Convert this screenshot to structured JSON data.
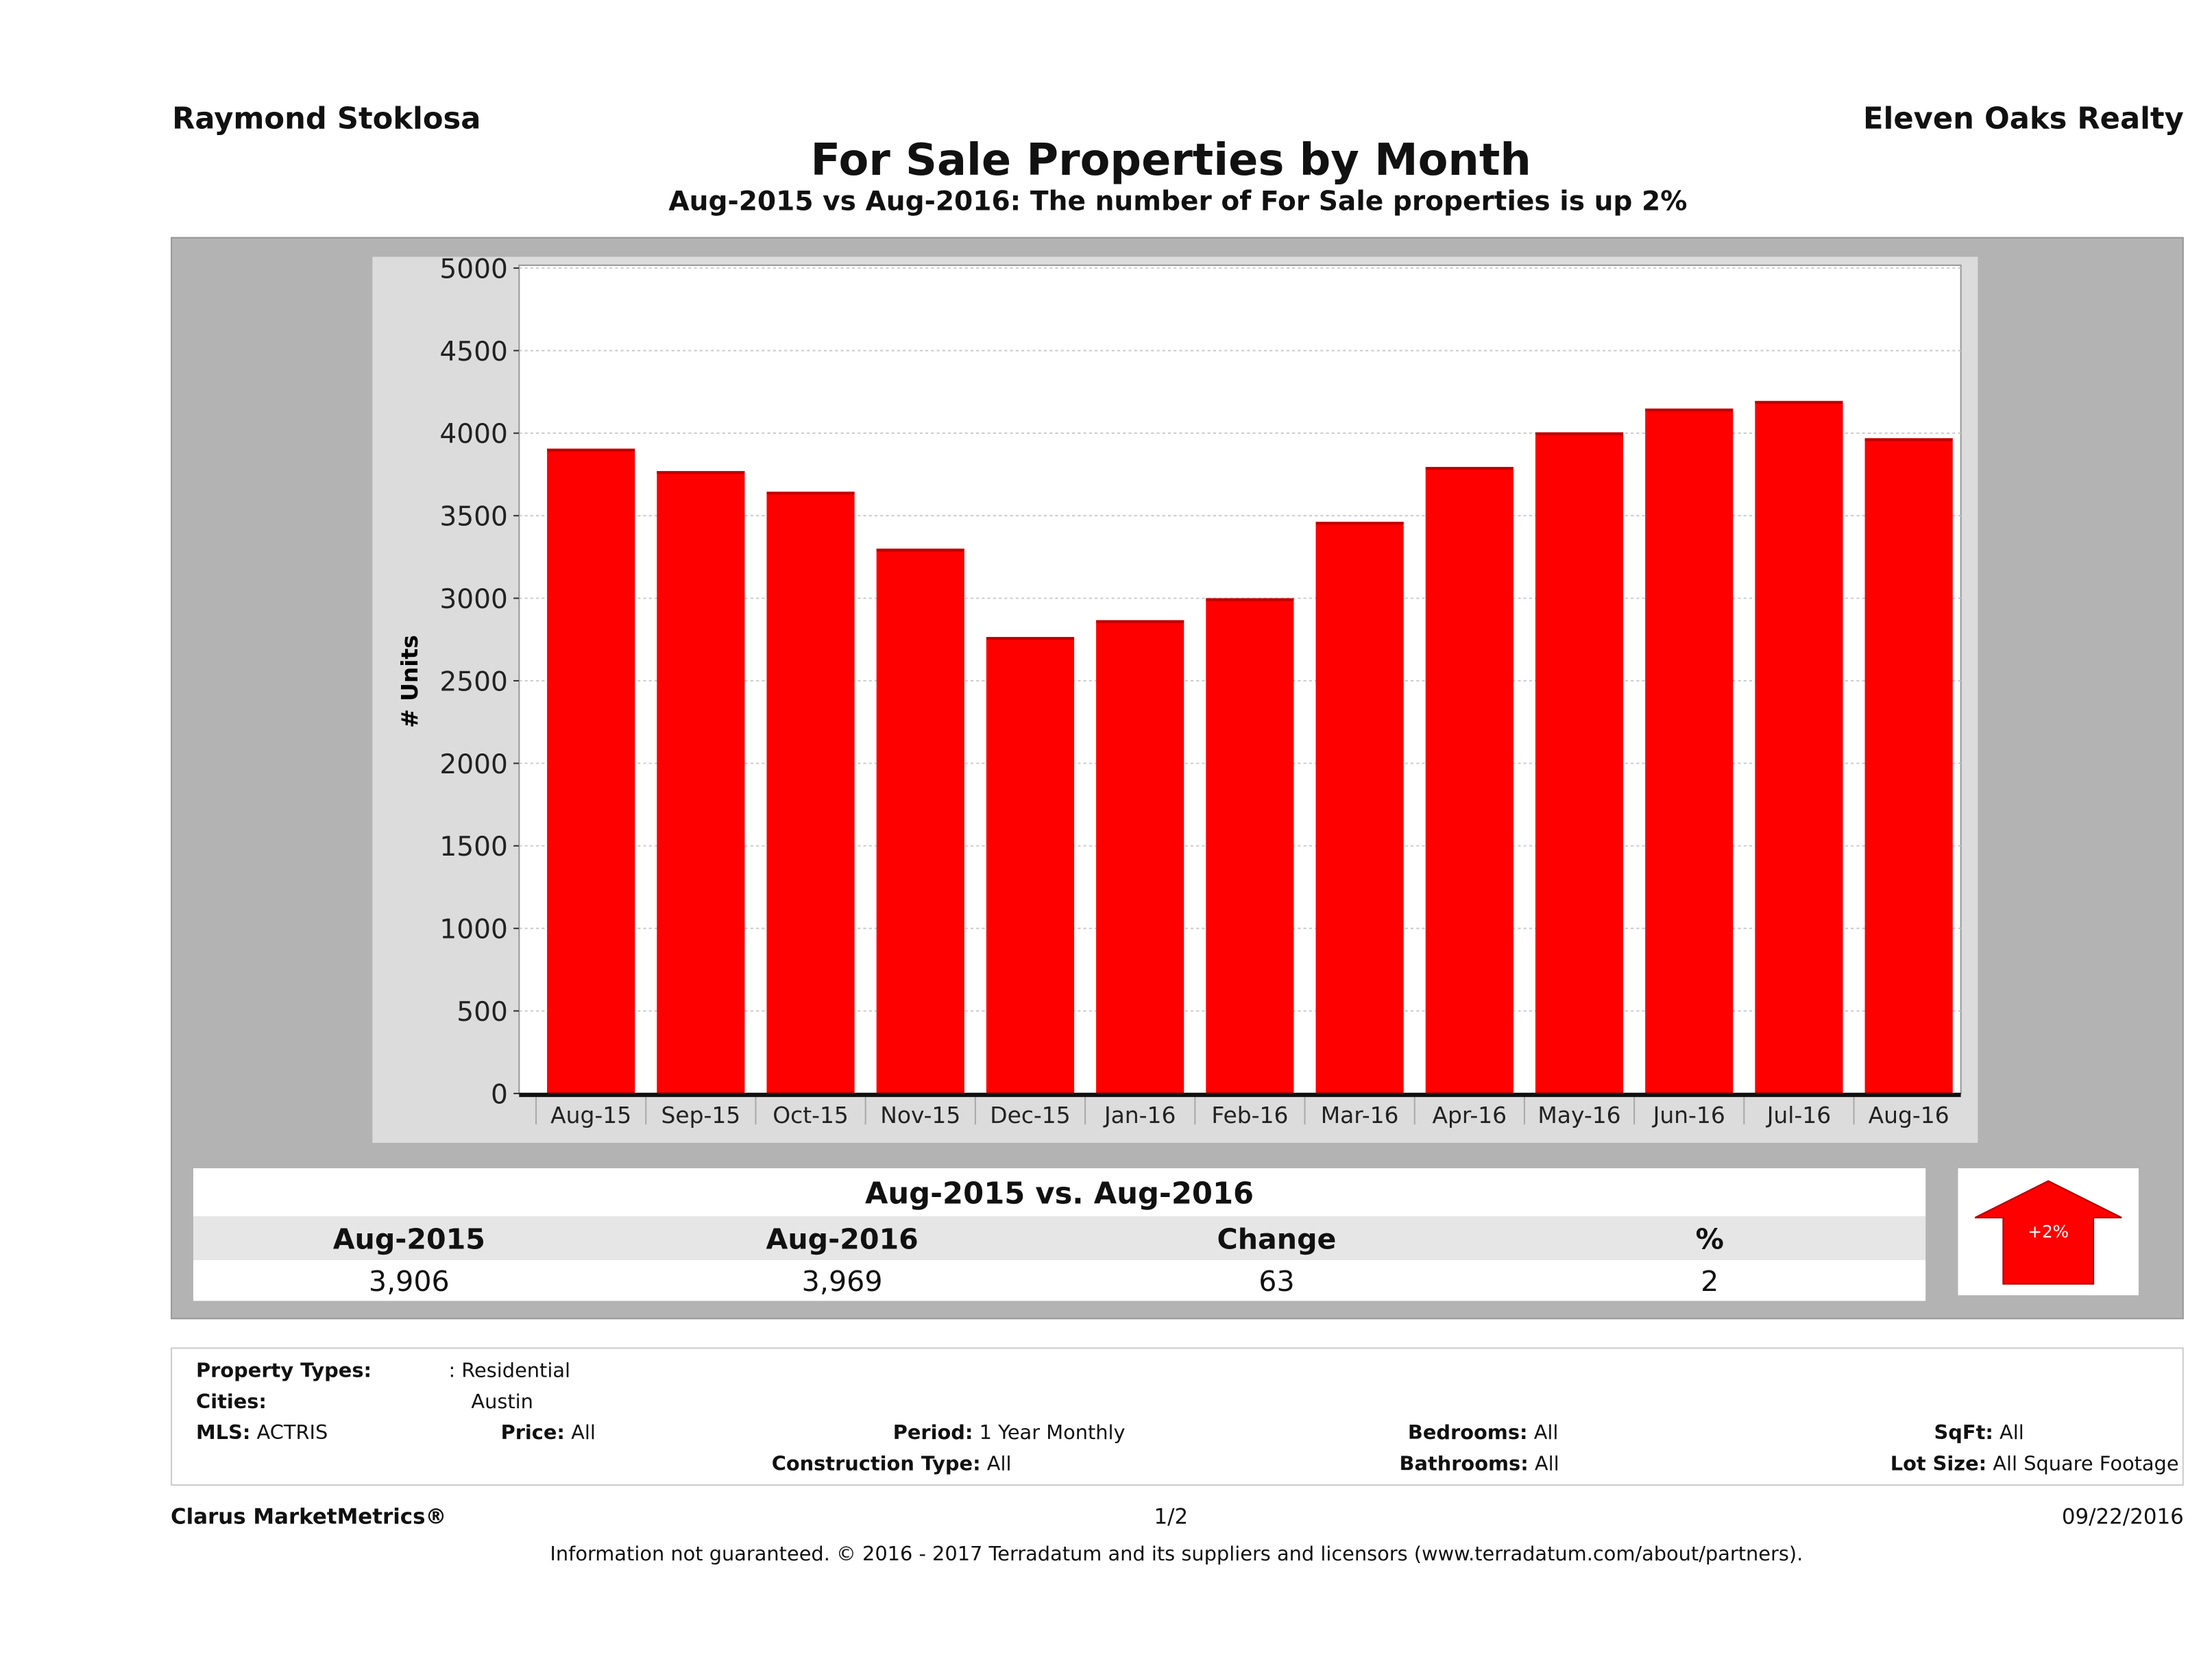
{
  "header": {
    "left": "Raymond Stoklosa",
    "right": "Eleven Oaks Realty"
  },
  "chart_data": {
    "type": "bar",
    "title": "For Sale Properties by Month",
    "subtitle": "Aug-2015 vs Aug-2016: The number of For Sale  properties is up 2%",
    "ylabel": "# Units",
    "xlabel": "",
    "ylim": [
      0,
      5000
    ],
    "yticks": [
      "0",
      "500",
      "1000",
      "1500",
      "2000",
      "2500",
      "3000",
      "3500",
      "4000",
      "4500",
      "5000"
    ],
    "categories": [
      "Aug-15",
      "Sep-15",
      "Oct-15",
      "Nov-15",
      "Dec-15",
      "Jan-16",
      "Feb-16",
      "Mar-16",
      "Apr-16",
      "May-16",
      "Jun-16",
      "Jul-16",
      "Aug-16"
    ],
    "values": [
      3906,
      3770,
      3645,
      3300,
      2765,
      2867,
      3000,
      3463,
      3795,
      4005,
      4149,
      4195,
      3969
    ],
    "bar_color": "#ff0000",
    "grid": true
  },
  "comparison": {
    "title": "Aug-2015 vs. Aug-2016",
    "headers": [
      "Aug-2015",
      "Aug-2016",
      "Change",
      "%"
    ],
    "values": [
      "3,906",
      "3,969",
      "63",
      "2"
    ],
    "badge": "+2%",
    "badge_color": "#ff0000",
    "badge_icon": "up-arrow-icon"
  },
  "filters": {
    "property_types_label": "Property Types:",
    "property_types": ": Residential",
    "cities_label": "Cities:",
    "cities": "Austin",
    "mls_label": "MLS:",
    "mls": "ACTRIS",
    "price_label": "Price:",
    "price": "All",
    "period_label": "Period:",
    "period": "1 Year Monthly",
    "construction_label": "Construction Type:",
    "construction": "All",
    "bedrooms_label": "Bedrooms:",
    "bedrooms": "All",
    "bathrooms_label": "Bathrooms:",
    "bathrooms": "All",
    "sqft_label": "SqFt:",
    "sqft": "All",
    "lot_label": "Lot Size:",
    "lot": "All Square Footage"
  },
  "footer": {
    "brand": "Clarus MarketMetrics®",
    "page": "1/2",
    "date": "09/22/2016",
    "disclaimer": "Information not guaranteed. © 2016 - 2017 Terradatum and its suppliers and licensors (www.terradatum.com/about/partners)."
  }
}
